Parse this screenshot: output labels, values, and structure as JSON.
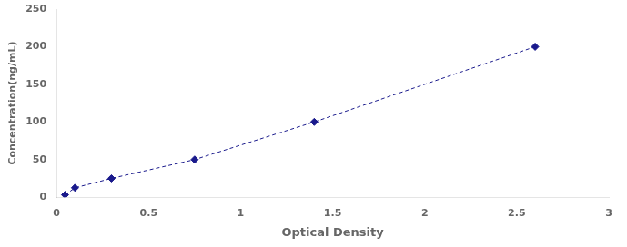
{
  "chart_data": {
    "type": "line",
    "x": [
      0.046,
      0.1,
      0.298,
      0.75,
      1.4,
      2.6
    ],
    "values": [
      3.13,
      12.5,
      25,
      50,
      100,
      200
    ],
    "color": "#1a1a8c",
    "marker": "diamond",
    "line_style": "dashed",
    "xlabel": "Optical Density",
    "ylabel": "Concentration(ng/mL)",
    "xlim": [
      0,
      3
    ],
    "ylim": [
      0,
      250
    ],
    "xticks": [
      0,
      0.5,
      1,
      1.5,
      2,
      2.5,
      3
    ],
    "yticks": [
      0,
      50,
      100,
      150,
      200,
      250
    ],
    "grid": false
  }
}
